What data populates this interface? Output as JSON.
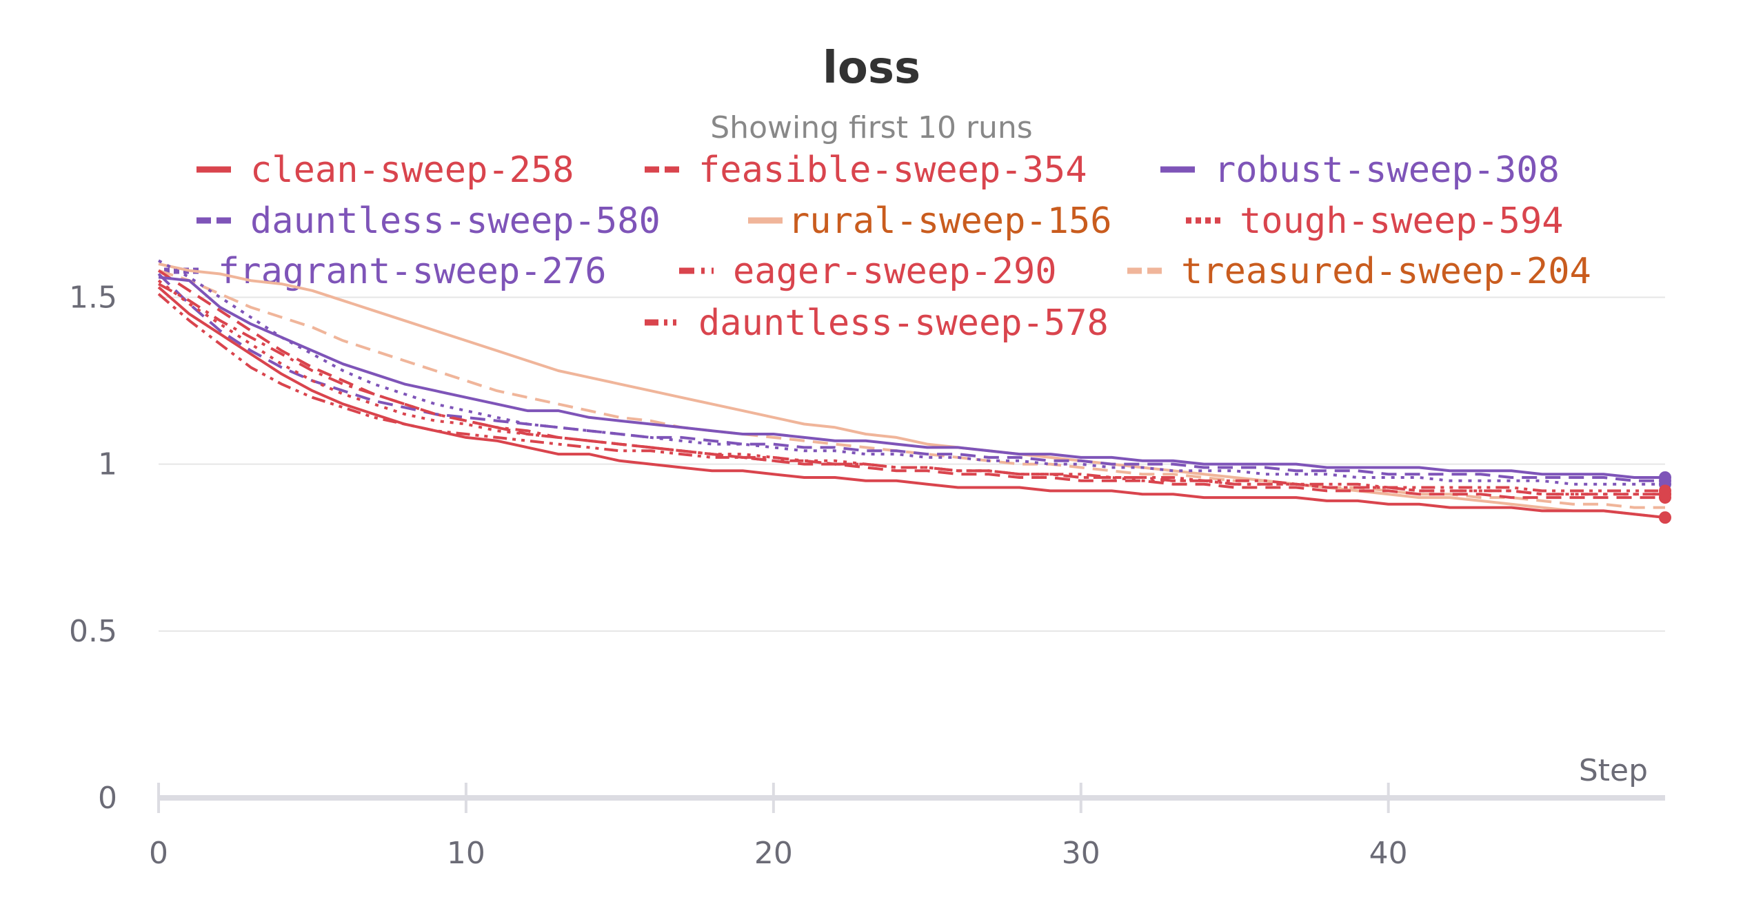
{
  "chart_data": {
    "type": "line",
    "title": "loss",
    "subtitle": "Showing first 10 runs",
    "xlabel": "Step",
    "ylabel": "",
    "xlim": [
      0,
      49
    ],
    "ylim": [
      0,
      1.6
    ],
    "x_ticks": [
      "0",
      "10",
      "20",
      "30",
      "40"
    ],
    "y_ticks": [
      "0",
      "0.5",
      "1",
      "1.5"
    ],
    "grid": true,
    "legend_position": "top",
    "series": [
      {
        "name": "clean-sweep-258",
        "color": "#d9444d",
        "dash": "solid",
        "text_color": "#d9444d",
        "end": 0.84,
        "values": [
          1.53,
          1.45,
          1.39,
          1.33,
          1.27,
          1.22,
          1.18,
          1.15,
          1.12,
          1.1,
          1.08,
          1.07,
          1.05,
          1.03,
          1.03,
          1.01,
          1,
          0.99,
          0.98,
          0.98,
          0.97,
          0.96,
          0.96,
          0.95,
          0.95,
          0.94,
          0.93,
          0.93,
          0.93,
          0.92,
          0.92,
          0.92,
          0.91,
          0.91,
          0.9,
          0.9,
          0.9,
          0.9,
          0.89,
          0.89,
          0.88,
          0.88,
          0.87,
          0.87,
          0.87,
          0.86,
          0.86,
          0.86,
          0.85,
          0.84
        ]
      },
      {
        "name": "feasible-sweep-354",
        "color": "#d9444d",
        "dash": "dash",
        "text_color": "#d9444d",
        "end": 0.9,
        "values": [
          1.58,
          1.52,
          1.46,
          1.4,
          1.34,
          1.29,
          1.25,
          1.21,
          1.18,
          1.15,
          1.13,
          1.11,
          1.09,
          1.08,
          1.07,
          1.06,
          1.05,
          1.04,
          1.03,
          1.02,
          1.01,
          1,
          1,
          0.99,
          0.98,
          0.98,
          0.97,
          0.97,
          0.96,
          0.96,
          0.95,
          0.95,
          0.95,
          0.94,
          0.94,
          0.93,
          0.93,
          0.93,
          0.92,
          0.92,
          0.92,
          0.91,
          0.91,
          0.91,
          0.9,
          0.9,
          0.9,
          0.9,
          0.9,
          0.9
        ]
      },
      {
        "name": "robust-sweep-308",
        "color": "#7e54b8",
        "dash": "solid",
        "text_color": "#7e54b8",
        "end": 0.96,
        "values": [
          1.56,
          1.55,
          1.47,
          1.42,
          1.38,
          1.34,
          1.3,
          1.27,
          1.24,
          1.22,
          1.2,
          1.18,
          1.16,
          1.16,
          1.14,
          1.13,
          1.12,
          1.11,
          1.1,
          1.09,
          1.09,
          1.08,
          1.07,
          1.07,
          1.06,
          1.05,
          1.05,
          1.04,
          1.03,
          1.03,
          1.02,
          1.02,
          1.01,
          1.01,
          1,
          1,
          1,
          1,
          0.99,
          0.99,
          0.99,
          0.99,
          0.98,
          0.98,
          0.98,
          0.97,
          0.97,
          0.97,
          0.96,
          0.96
        ]
      },
      {
        "name": "dauntless-sweep-580",
        "color": "#7e54b8",
        "dash": "dash",
        "text_color": "#7e54b8",
        "end": 0.95,
        "values": [
          1.57,
          1.48,
          1.4,
          1.34,
          1.29,
          1.25,
          1.22,
          1.19,
          1.17,
          1.15,
          1.14,
          1.13,
          1.12,
          1.11,
          1.1,
          1.09,
          1.08,
          1.08,
          1.07,
          1.06,
          1.06,
          1.05,
          1.05,
          1.04,
          1.04,
          1.03,
          1.03,
          1.02,
          1.02,
          1.01,
          1.01,
          1,
          1,
          1,
          0.99,
          0.99,
          0.99,
          0.98,
          0.98,
          0.98,
          0.97,
          0.97,
          0.97,
          0.97,
          0.96,
          0.96,
          0.96,
          0.96,
          0.95,
          0.95
        ]
      },
      {
        "name": "rural-sweep-156",
        "color": "#f0b59a",
        "dash": "solid",
        "text_color": "#c95c1e",
        "end": 0.84,
        "values": [
          1.6,
          1.58,
          1.57,
          1.55,
          1.54,
          1.52,
          1.49,
          1.46,
          1.43,
          1.4,
          1.37,
          1.34,
          1.31,
          1.28,
          1.26,
          1.24,
          1.22,
          1.2,
          1.18,
          1.16,
          1.14,
          1.12,
          1.11,
          1.09,
          1.08,
          1.06,
          1.05,
          1.04,
          1.03,
          1.02,
          1.01,
          1,
          0.99,
          0.98,
          0.97,
          0.96,
          0.95,
          0.94,
          0.93,
          0.92,
          0.91,
          0.9,
          0.9,
          0.89,
          0.88,
          0.87,
          0.86,
          0.86,
          0.85,
          0.84
        ]
      },
      {
        "name": "tough-sweep-594",
        "color": "#d9444d",
        "dash": "dot",
        "text_color": "#d9444d",
        "end": 0.91,
        "values": [
          1.55,
          1.48,
          1.42,
          1.36,
          1.3,
          1.25,
          1.21,
          1.18,
          1.15,
          1.13,
          1.12,
          1.1,
          1.09,
          1.08,
          1.07,
          1.06,
          1.05,
          1.04,
          1.03,
          1.03,
          1.02,
          1.01,
          1.01,
          1,
          0.99,
          0.99,
          0.98,
          0.98,
          0.97,
          0.97,
          0.96,
          0.96,
          0.95,
          0.95,
          0.95,
          0.94,
          0.94,
          0.94,
          0.93,
          0.93,
          0.93,
          0.92,
          0.92,
          0.92,
          0.92,
          0.91,
          0.91,
          0.91,
          0.91,
          0.91
        ]
      },
      {
        "name": "fragrant-sweep-276",
        "color": "#7e54b8",
        "dash": "dot",
        "text_color": "#7e54b8",
        "end": 0.94,
        "values": [
          1.61,
          1.56,
          1.5,
          1.44,
          1.38,
          1.33,
          1.28,
          1.24,
          1.21,
          1.18,
          1.16,
          1.14,
          1.12,
          1.11,
          1.1,
          1.09,
          1.08,
          1.07,
          1.06,
          1.06,
          1.05,
          1.04,
          1.04,
          1.03,
          1.03,
          1.02,
          1.02,
          1.01,
          1.01,
          1,
          1,
          0.99,
          0.99,
          0.98,
          0.98,
          0.98,
          0.97,
          0.97,
          0.97,
          0.96,
          0.96,
          0.96,
          0.95,
          0.95,
          0.95,
          0.95,
          0.94,
          0.94,
          0.94,
          0.94
        ]
      },
      {
        "name": "eager-sweep-290",
        "color": "#d9444d",
        "dash": "dashdot",
        "text_color": "#d9444d",
        "end": 0.91,
        "values": [
          1.54,
          1.49,
          1.43,
          1.38,
          1.33,
          1.28,
          1.24,
          1.21,
          1.18,
          1.15,
          1.13,
          1.11,
          1.1,
          1.08,
          1.07,
          1.06,
          1.05,
          1.04,
          1.03,
          1.02,
          1.02,
          1.01,
          1,
          1,
          0.99,
          0.99,
          0.98,
          0.98,
          0.97,
          0.97,
          0.96,
          0.96,
          0.96,
          0.95,
          0.95,
          0.94,
          0.94,
          0.94,
          0.93,
          0.93,
          0.93,
          0.92,
          0.92,
          0.92,
          0.92,
          0.91,
          0.91,
          0.91,
          0.91,
          0.91
        ]
      },
      {
        "name": "treasured-sweep-204",
        "color": "#f0b59a",
        "dash": "dash",
        "text_color": "#c95c1e",
        "end": 0.87,
        "values": [
          1.58,
          1.55,
          1.51,
          1.47,
          1.44,
          1.41,
          1.37,
          1.34,
          1.31,
          1.28,
          1.25,
          1.22,
          1.2,
          1.18,
          1.16,
          1.14,
          1.13,
          1.11,
          1.1,
          1.09,
          1.08,
          1.07,
          1.06,
          1.05,
          1.04,
          1.03,
          1.02,
          1.01,
          1,
          1,
          0.99,
          0.98,
          0.97,
          0.97,
          0.96,
          0.95,
          0.95,
          0.94,
          0.93,
          0.93,
          0.92,
          0.91,
          0.91,
          0.9,
          0.9,
          0.89,
          0.88,
          0.88,
          0.87,
          0.87
        ]
      },
      {
        "name": "dauntless-sweep-578",
        "color": "#d9444d",
        "dash": "dashdotdot",
        "text_color": "#d9444d",
        "end": 0.92,
        "values": [
          1.51,
          1.43,
          1.36,
          1.29,
          1.24,
          1.2,
          1.17,
          1.14,
          1.12,
          1.1,
          1.09,
          1.08,
          1.07,
          1.06,
          1.05,
          1.04,
          1.04,
          1.03,
          1.02,
          1.02,
          1.01,
          1.01,
          1,
          1,
          0.99,
          0.99,
          0.98,
          0.98,
          0.97,
          0.97,
          0.97,
          0.96,
          0.96,
          0.96,
          0.95,
          0.95,
          0.95,
          0.94,
          0.94,
          0.94,
          0.93,
          0.93,
          0.93,
          0.93,
          0.93,
          0.92,
          0.92,
          0.92,
          0.92,
          0.92
        ]
      }
    ]
  }
}
